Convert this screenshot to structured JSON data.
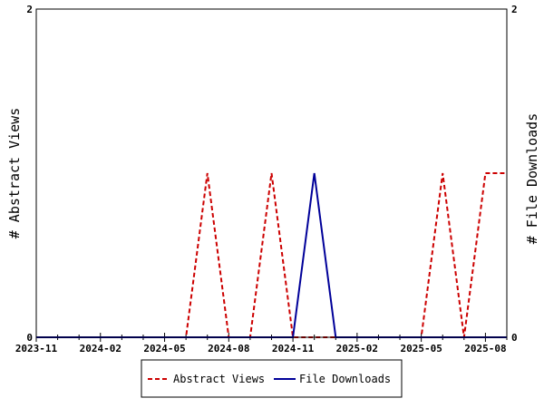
{
  "chart_data": {
    "type": "line",
    "title": "",
    "xlabel": "",
    "ylabel": "# Abstract Views",
    "y2label": "# File Downloads",
    "x": [
      "2023-11",
      "2023-12",
      "2024-01",
      "2024-02",
      "2024-03",
      "2024-04",
      "2024-05",
      "2024-06",
      "2024-07",
      "2024-08",
      "2024-09",
      "2024-10",
      "2024-11",
      "2024-12",
      "2025-01",
      "2025-02",
      "2025-03",
      "2025-04",
      "2025-05",
      "2025-06",
      "2025-07",
      "2025-08",
      "2025-09"
    ],
    "x_tick_labels": [
      "2023-11",
      "2024-02",
      "2024-05",
      "2024-08",
      "2024-11",
      "2025-02",
      "2025-05",
      "2025-08"
    ],
    "ylim": [
      0,
      2
    ],
    "y2lim": [
      0,
      2
    ],
    "y_tick_labels": [
      "0",
      "2"
    ],
    "y2_tick_labels": [
      "0",
      "2"
    ],
    "grid": false,
    "legend_position": "bottom",
    "series": [
      {
        "name": "Abstract Views",
        "axis": "left",
        "color": "#cc0000",
        "dash": "dashed",
        "values": [
          0,
          0,
          0,
          0,
          0,
          0,
          0,
          0,
          1,
          0,
          0,
          1,
          0,
          0,
          0,
          0,
          0,
          0,
          0,
          1,
          0,
          1,
          1
        ]
      },
      {
        "name": "File Downloads",
        "axis": "right",
        "color": "#000099",
        "dash": "solid",
        "values": [
          0,
          0,
          0,
          0,
          0,
          0,
          0,
          0,
          0,
          0,
          0,
          0,
          0,
          1,
          0,
          0,
          0,
          0,
          0,
          0,
          0,
          0,
          0
        ]
      }
    ]
  }
}
